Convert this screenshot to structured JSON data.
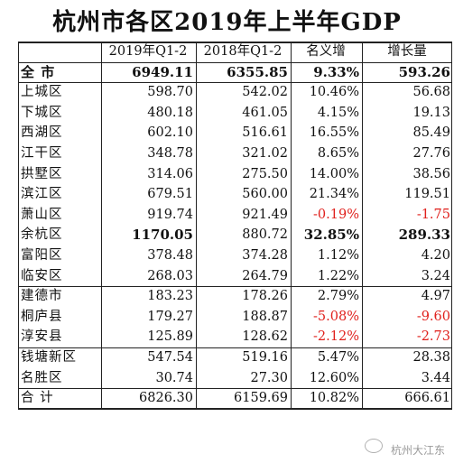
{
  "title": "杭州市各区2019年上半年GDP",
  "headers": [
    "",
    "2019年Q1-2",
    "2018年Q1-2",
    "名义增",
    "增长量"
  ],
  "rows": [
    {
      "name": "全  市",
      "v2019": "6949.11",
      "v2018": "6355.85",
      "growth": "9.33%",
      "inc": "593.26",
      "bold": true
    },
    {
      "name": "上城区",
      "v2019": "598.70",
      "v2018": "542.02",
      "growth": "10.46%",
      "inc": "56.68"
    },
    {
      "name": "下城区",
      "v2019": "480.18",
      "v2018": "461.05",
      "growth": "4.15%",
      "inc": "19.13"
    },
    {
      "name": "西湖区",
      "v2019": "602.10",
      "v2018": "516.61",
      "growth": "16.55%",
      "inc": "85.49"
    },
    {
      "name": "江干区",
      "v2019": "348.78",
      "v2018": "321.02",
      "growth": "8.65%",
      "inc": "27.76"
    },
    {
      "name": "拱墅区",
      "v2019": "314.06",
      "v2018": "275.50",
      "growth": "14.00%",
      "inc": "38.56"
    },
    {
      "name": "滨江区",
      "v2019": "679.51",
      "v2018": "560.00",
      "growth": "21.34%",
      "inc": "119.51"
    },
    {
      "name": "萧山区",
      "v2019": "919.74",
      "v2018": "921.49",
      "growth": "-0.19%",
      "inc": "-1.75",
      "negative": true
    },
    {
      "name": "余杭区",
      "v2019": "1170.05",
      "v2018": "880.72",
      "growth": "32.85%",
      "inc": "289.33",
      "boldcols": true
    },
    {
      "name": "富阳区",
      "v2019": "378.48",
      "v2018": "374.28",
      "growth": "1.12%",
      "inc": "4.20"
    },
    {
      "name": "临安区",
      "v2019": "268.03",
      "v2018": "264.79",
      "growth": "1.22%",
      "inc": "3.24"
    },
    {
      "name": "建德市",
      "v2019": "183.23",
      "v2018": "178.26",
      "growth": "2.79%",
      "inc": "4.97"
    },
    {
      "name": "桐庐县",
      "v2019": "179.27",
      "v2018": "188.87",
      "growth": "-5.08%",
      "inc": "-9.60",
      "negative": true
    },
    {
      "name": "淳安县",
      "v2019": "125.89",
      "v2018": "128.62",
      "growth": "-2.12%",
      "inc": "-2.73",
      "negative": true
    },
    {
      "name": "钱塘新区",
      "v2019": "547.54",
      "v2018": "519.16",
      "growth": "5.47%",
      "inc": "28.38"
    },
    {
      "name": "名胜区",
      "v2019": "30.74",
      "v2018": "27.30",
      "growth": "12.60%",
      "inc": "3.44"
    },
    {
      "name": "合  计",
      "v2019": "6826.30",
      "v2018": "6159.69",
      "growth": "10.82%",
      "inc": "666.61"
    }
  ],
  "watermark": "杭州大江东",
  "colors": {
    "negative": "#e0201c",
    "text": "#111111",
    "lines": "#222222"
  }
}
